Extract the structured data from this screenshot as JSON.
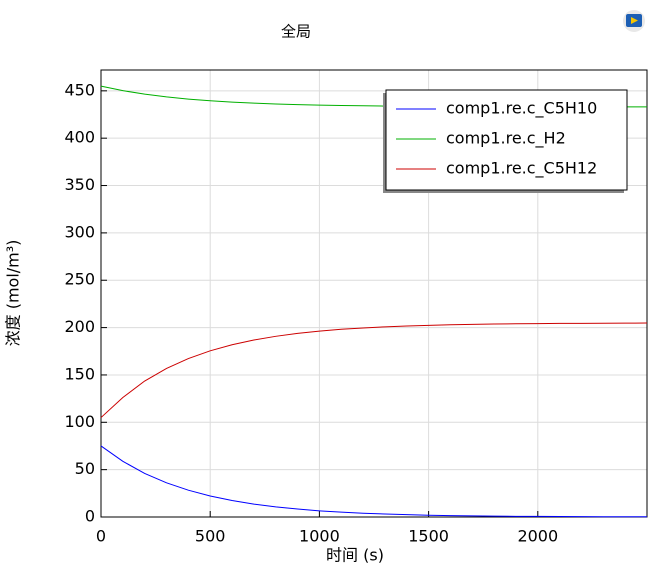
{
  "chart_data": {
    "type": "line",
    "title": "全局",
    "xlabel": "时间 (s)",
    "ylabel": "浓度 (mol/m³)",
    "x": [
      0,
      100,
      200,
      300,
      400,
      500,
      600,
      700,
      800,
      900,
      1000,
      1100,
      1200,
      1300,
      1400,
      1500,
      1600,
      1700,
      1800,
      1900,
      2000,
      2100,
      2200,
      2300,
      2400,
      2500
    ],
    "series": [
      {
        "name": "comp1.re.c_C5H10",
        "color": "#0000ff",
        "values": [
          75,
          58.8,
          46.0,
          36.1,
          28.3,
          22.2,
          17.4,
          13.6,
          10.7,
          8.4,
          6.5,
          5.1,
          4.0,
          3.2,
          2.5,
          1.9,
          1.5,
          1.2,
          0.9,
          0.7,
          0.6,
          0.5,
          0.4,
          0.3,
          0.2,
          0.2
        ]
      },
      {
        "name": "comp1.re.c_H2",
        "color": "#00b000",
        "values": [
          455,
          450.2,
          446.5,
          443.6,
          441.3,
          439.5,
          438.1,
          437.0,
          436.1,
          435.5,
          434.9,
          434.5,
          434.2,
          433.9,
          433.7,
          433.6,
          433.4,
          433.3,
          433.3,
          433.2,
          433.2,
          433.1,
          433.1,
          433.1,
          433.0,
          433.0
        ]
      },
      {
        "name": "comp1.re.c_C5H12",
        "color": "#cc0000",
        "values": [
          105,
          126.2,
          143.6,
          156.9,
          167.3,
          175.5,
          181.9,
          186.9,
          190.8,
          193.9,
          196.3,
          198.2,
          199.6,
          200.8,
          201.7,
          202.4,
          203.0,
          203.4,
          203.8,
          204.0,
          204.2,
          204.4,
          204.5,
          204.6,
          204.7,
          204.8
        ]
      }
    ],
    "xlim": [
      0,
      2500
    ],
    "ylim": [
      0,
      472
    ],
    "xticks": [
      0,
      500,
      1000,
      1500,
      2000
    ],
    "yticks": [
      0,
      50,
      100,
      150,
      200,
      250,
      300,
      350,
      400,
      450
    ],
    "grid": true,
    "legend": "upper right"
  }
}
